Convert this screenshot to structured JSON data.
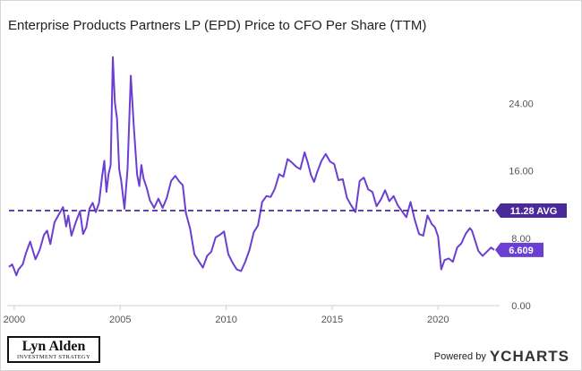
{
  "chart_data": {
    "type": "line",
    "title": "Enterprise Products Partners LP (EPD) Price to CFO Per Share (TTM)",
    "xlabel": "",
    "ylabel": "",
    "xlim": [
      1999.75,
      2022.65
    ],
    "ylim": [
      0,
      31.5
    ],
    "x_ticks": [
      2000,
      2005,
      2010,
      2015,
      2020
    ],
    "x_tick_labels": [
      "2000",
      "2005",
      "2010",
      "2015",
      "2020"
    ],
    "y_ticks": [
      0,
      8,
      16,
      24
    ],
    "y_tick_labels": [
      "0.00",
      "8.00",
      "16.00",
      "24.00"
    ],
    "grid": false,
    "series": [
      {
        "name": "EPD Price to CFO Per Share (TTM)",
        "color": "#6b3fd1",
        "x": [
          1999.75,
          1999.9,
          2000.1,
          2000.2,
          2000.4,
          2000.55,
          2000.75,
          2001.0,
          2001.2,
          2001.4,
          2001.55,
          2001.7,
          2001.9,
          2002.1,
          2002.3,
          2002.45,
          2002.55,
          2002.7,
          2002.9,
          2003.1,
          2003.25,
          2003.4,
          2003.55,
          2003.7,
          2003.85,
          2004.0,
          2004.15,
          2004.25,
          2004.35,
          2004.45,
          2004.55,
          2004.65,
          2004.75,
          2004.85,
          2004.95,
          2005.05,
          2005.2,
          2005.35,
          2005.5,
          2005.65,
          2005.8,
          2005.9,
          2006.0,
          2006.1,
          2006.25,
          2006.4,
          2006.6,
          2006.8,
          2007.0,
          2007.2,
          2007.4,
          2007.6,
          2007.8,
          2007.95,
          2008.1,
          2008.3,
          2008.5,
          2008.7,
          2008.9,
          2009.1,
          2009.3,
          2009.5,
          2009.7,
          2009.9,
          2010.1,
          2010.3,
          2010.5,
          2010.7,
          2010.9,
          2011.1,
          2011.3,
          2011.5,
          2011.7,
          2011.9,
          2012.1,
          2012.3,
          2012.5,
          2012.7,
          2012.9,
          2013.1,
          2013.3,
          2013.5,
          2013.7,
          2013.85,
          2014.0,
          2014.15,
          2014.3,
          2014.5,
          2014.7,
          2014.9,
          2015.1,
          2015.3,
          2015.5,
          2015.7,
          2015.9,
          2016.1,
          2016.3,
          2016.5,
          2016.7,
          2016.9,
          2017.1,
          2017.3,
          2017.5,
          2017.7,
          2017.9,
          2018.1,
          2018.3,
          2018.5,
          2018.7,
          2018.9,
          2019.1,
          2019.3,
          2019.5,
          2019.7,
          2019.85,
          2020.0,
          2020.15,
          2020.3,
          2020.5,
          2020.7,
          2020.9,
          2021.1,
          2021.3,
          2021.5,
          2021.6,
          2021.75,
          2021.9,
          2022.1,
          2022.3,
          2022.5,
          2022.65
        ],
        "y": [
          4.6,
          4.9,
          3.6,
          4.3,
          4.9,
          6.2,
          7.6,
          5.5,
          6.6,
          8.4,
          8.9,
          7.3,
          9.9,
          10.8,
          11.7,
          9.4,
          10.7,
          8.3,
          9.9,
          11.2,
          8.5,
          9.3,
          11.5,
          12.2,
          11.1,
          12.2,
          15.4,
          17.2,
          13.5,
          15.6,
          16.7,
          29.5,
          24.1,
          22.2,
          16.2,
          14.8,
          11.5,
          16.3,
          27.3,
          21.0,
          15.5,
          14.2,
          16.7,
          15.1,
          14.0,
          12.5,
          11.6,
          12.7,
          11.6,
          12.8,
          14.8,
          15.4,
          14.7,
          14.3,
          11.0,
          9.1,
          6.1,
          5.3,
          4.5,
          5.9,
          6.4,
          8.1,
          8.4,
          8.8,
          6.1,
          5.1,
          4.3,
          4.1,
          5.2,
          6.6,
          8.7,
          9.5,
          12.3,
          13.0,
          12.9,
          13.9,
          15.6,
          15.3,
          17.4,
          17.0,
          16.5,
          16.2,
          18.2,
          17.0,
          15.5,
          14.7,
          15.9,
          17.2,
          18.0,
          17.1,
          16.8,
          14.9,
          15.0,
          12.8,
          11.9,
          11.1,
          14.8,
          15.2,
          13.8,
          13.5,
          11.8,
          12.6,
          13.7,
          12.4,
          13.0,
          11.9,
          11.2,
          10.5,
          12.3,
          10.2,
          8.5,
          8.3,
          10.7,
          9.7,
          9.3,
          8.2,
          4.3,
          5.4,
          5.6,
          5.2,
          6.9,
          7.4,
          8.5,
          9.2,
          8.9,
          7.7,
          6.5,
          5.9,
          6.4,
          6.9,
          6.609
        ]
      }
    ],
    "average": {
      "value": 11.28,
      "label": "11.28 AVG",
      "color": "#4a2a9a"
    },
    "last_value": {
      "value": 6.609,
      "label": "6.609",
      "color": "#6b3fd1"
    }
  },
  "branding": {
    "logo_name": "Lyn Alden",
    "logo_sub": "INVESTMENT STRATEGY",
    "powered_by": "Powered by",
    "ycharts": "YCHARTS"
  }
}
